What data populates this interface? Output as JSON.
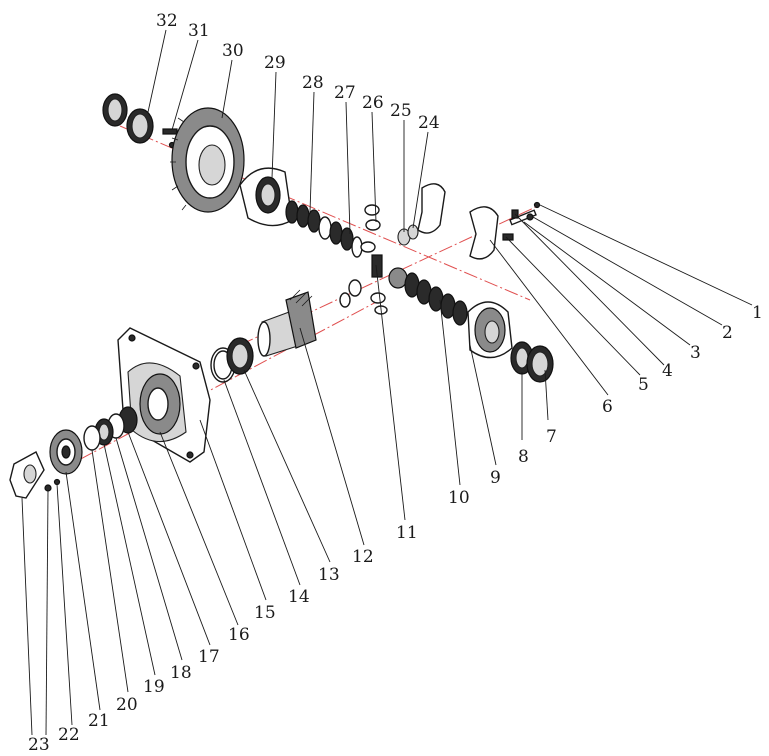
{
  "diagram": {
    "type": "exploded-assembly",
    "callouts": [
      {
        "n": "1"
      },
      {
        "n": "2"
      },
      {
        "n": "3"
      },
      {
        "n": "4"
      },
      {
        "n": "5"
      },
      {
        "n": "6"
      },
      {
        "n": "7"
      },
      {
        "n": "8"
      },
      {
        "n": "9"
      },
      {
        "n": "10"
      },
      {
        "n": "11"
      },
      {
        "n": "12"
      },
      {
        "n": "13"
      },
      {
        "n": "14"
      },
      {
        "n": "15"
      },
      {
        "n": "16"
      },
      {
        "n": "17"
      },
      {
        "n": "18"
      },
      {
        "n": "19"
      },
      {
        "n": "20"
      },
      {
        "n": "21"
      },
      {
        "n": "22"
      },
      {
        "n": "23"
      },
      {
        "n": "24"
      },
      {
        "n": "25"
      },
      {
        "n": "26"
      },
      {
        "n": "27"
      },
      {
        "n": "28"
      },
      {
        "n": "29"
      },
      {
        "n": "30"
      },
      {
        "n": "31"
      },
      {
        "n": "32"
      }
    ]
  },
  "colors": {
    "axis": "#e05050",
    "ink": "#1a1a1a",
    "background": "#ffffff"
  }
}
